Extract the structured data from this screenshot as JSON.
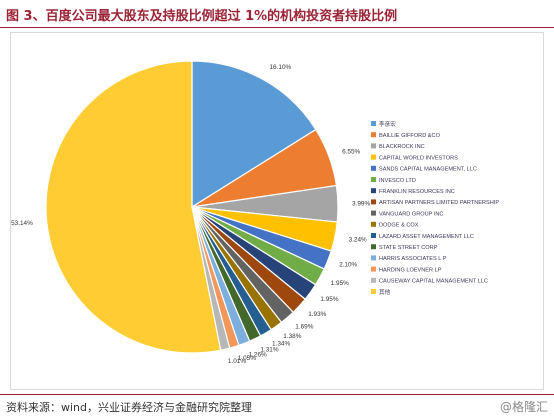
{
  "header": {
    "title": "图 3、百度公司最大股东及持股比例超过 1%的机构投资者持股比例"
  },
  "footer": {
    "source": "资料来源：wind，兴业证券经济与金融研究院整理",
    "watermark": "@格隆汇"
  },
  "chart_data": {
    "type": "pie",
    "title": "",
    "legend_position": "right",
    "slices": [
      {
        "name": "李彦宏",
        "value": 16.1,
        "label": "16.10%",
        "color": "#5b9bd5"
      },
      {
        "name": "BAILLIE GIFFORD &CO",
        "value": 6.55,
        "label": "6.55%",
        "color": "#ed7d31"
      },
      {
        "name": "BLACKROCK INC",
        "value": 3.99,
        "label": "3.99%",
        "color": "#a5a5a5"
      },
      {
        "name": "CAPITAL WORLD INVESTORS",
        "value": 3.24,
        "label": "3.24%",
        "color": "#ffc000"
      },
      {
        "name": "SANDS CAPITAL MANAGEMENT, LLC",
        "value": 2.1,
        "label": "2.10%",
        "color": "#4472c4"
      },
      {
        "name": "INVESCO LTD",
        "value": 1.95,
        "label": "1.95%",
        "color": "#70ad47"
      },
      {
        "name": "FRANKLIN RESOURCES INC",
        "value": 1.95,
        "label": "1.95%",
        "color": "#264478"
      },
      {
        "name": "ARTISAN PARTNERS LIMITED PARTNERSHIP",
        "value": 1.93,
        "label": "1.93%",
        "color": "#9e480e"
      },
      {
        "name": "VANGUARD GROUP INC",
        "value": 1.69,
        "label": "1.69%",
        "color": "#636363"
      },
      {
        "name": "DODGE & COX",
        "value": 1.38,
        "label": "1.38%",
        "color": "#997300"
      },
      {
        "name": "LAZARD ASSET MANAGEMENT LLC",
        "value": 1.34,
        "label": "1.34%",
        "color": "#255e91"
      },
      {
        "name": "STATE STREET CORP",
        "value": 1.31,
        "label": "1.31%",
        "color": "#43682b"
      },
      {
        "name": "HARRIS ASSOCIATES L P",
        "value": 1.26,
        "label": "1.26%",
        "color": "#7cafdd"
      },
      {
        "name": "HARDING LOEVNER LP",
        "value": 1.05,
        "label": "1.05%",
        "color": "#f1975a"
      },
      {
        "name": "CAUSEWAY CAPITAL MANAGEMENT LLC",
        "value": 1.01,
        "label": "1.01%",
        "color": "#b7b7b7"
      },
      {
        "name": "其他",
        "value": 53.14,
        "label": "53.14%",
        "color": "#ffcd33"
      }
    ]
  }
}
